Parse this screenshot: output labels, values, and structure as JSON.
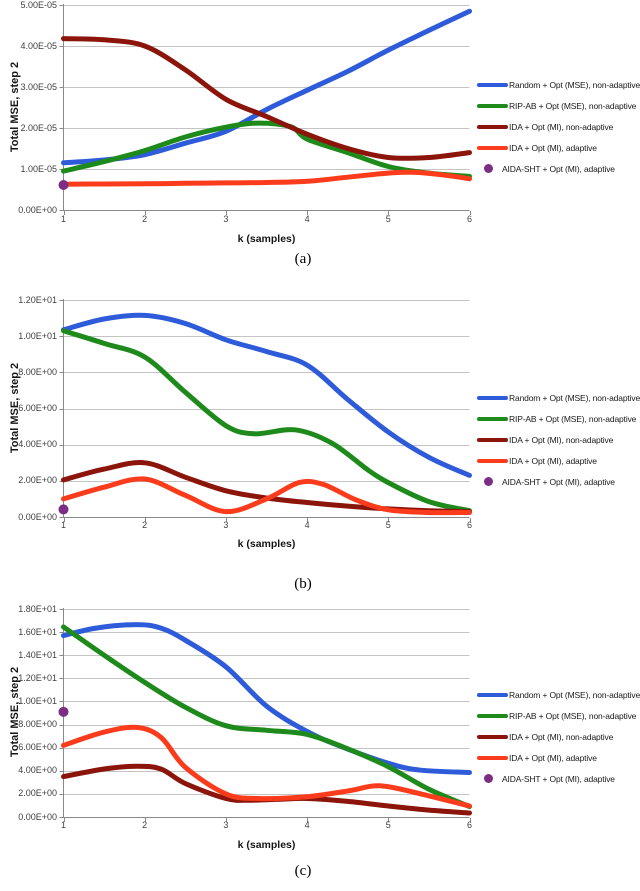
{
  "page": {
    "captions": [
      "(a)",
      "(b)",
      "(c)"
    ]
  },
  "colors": {
    "random_blue": "#2e5bda",
    "ripab_green": "#1e8a1c",
    "ida_nonadaptive_darkred": "#8b150a",
    "ida_adaptive_red": "#fb3c1c",
    "aida_purple": "#7c2d84",
    "gridline": "#c4c4c4",
    "axis": "#898989"
  },
  "chart_data": [
    {
      "type": "line",
      "title": "",
      "xlabel": "k (samples)",
      "ylabel": "Total MSE, step 2",
      "xlim": [
        1,
        6
      ],
      "x_ticks": [
        "1",
        "2",
        "3",
        "4",
        "5",
        "6"
      ],
      "ylim": [
        0,
        5e-05
      ],
      "y_ticks": [
        "0.00E+00",
        "1.00E-05",
        "2.00E-05",
        "3.00E-05",
        "4.00E-05",
        "5.00E-05"
      ],
      "grid": true,
      "legend_position": "right",
      "series": [
        {
          "id": "random",
          "name": "Random + Opt (MSE), non-adaptive",
          "marker": "line",
          "color": "#2e5bda",
          "points": [
            [
              1,
              1.15e-05
            ],
            [
              1.5,
              1.22e-05
            ],
            [
              2,
              1.35e-05
            ],
            [
              2.5,
              1.63e-05
            ],
            [
              3,
              1.92e-05
            ],
            [
              3.5,
              2.45e-05
            ],
            [
              4,
              2.92e-05
            ],
            [
              4.5,
              3.38e-05
            ],
            [
              5,
              3.9e-05
            ],
            [
              5.5,
              4.38e-05
            ],
            [
              6,
              4.85e-05
            ]
          ]
        },
        {
          "id": "rip-ab",
          "name": "RIP-AB + Opt (MSE), non-adaptive",
          "marker": "line",
          "color": "#1e8a1c",
          "points": [
            [
              1,
              9.5e-06
            ],
            [
              1.5,
              1.18e-05
            ],
            [
              2,
              1.45e-05
            ],
            [
              2.5,
              1.78e-05
            ],
            [
              3,
              2.02e-05
            ],
            [
              3.4,
              2.12e-05
            ],
            [
              3.8,
              2.03e-05
            ],
            [
              4,
              1.73e-05
            ],
            [
              4.5,
              1.4e-05
            ],
            [
              5,
              1.06e-05
            ],
            [
              5.5,
              9e-06
            ],
            [
              6,
              8.2e-06
            ]
          ]
        },
        {
          "id": "ida-na",
          "name": "IDA + Opt (MI), non-adaptive",
          "marker": "line",
          "color": "#8b150a",
          "points": [
            [
              1,
              4.18e-05
            ],
            [
              1.5,
              4.15e-05
            ],
            [
              2,
              4e-05
            ],
            [
              2.5,
              3.42e-05
            ],
            [
              3,
              2.7e-05
            ],
            [
              3.5,
              2.28e-05
            ],
            [
              4,
              1.85e-05
            ],
            [
              4.5,
              1.5e-05
            ],
            [
              5,
              1.28e-05
            ],
            [
              5.5,
              1.28e-05
            ],
            [
              6,
              1.4e-05
            ]
          ]
        },
        {
          "id": "ida-ad",
          "name": "IDA + Opt (MI), adaptive",
          "marker": "line",
          "color": "#fb3c1c",
          "points": [
            [
              1,
              6.3e-06
            ],
            [
              1.5,
              6.35e-06
            ],
            [
              2,
              6.4e-06
            ],
            [
              2.5,
              6.5e-06
            ],
            [
              3,
              6.6e-06
            ],
            [
              3.5,
              6.7e-06
            ],
            [
              4,
              7e-06
            ],
            [
              4.5,
              8e-06
            ],
            [
              5,
              9e-06
            ],
            [
              5.3,
              9.2e-06
            ],
            [
              5.7,
              8.5e-06
            ],
            [
              6,
              7.6e-06
            ]
          ]
        },
        {
          "id": "aida-dot",
          "name": "AIDA-SHT + Opt (MI), adaptive",
          "marker": "dot",
          "color": "#7c2d84",
          "points": [
            [
              1,
              6.1e-06
            ]
          ]
        }
      ]
    },
    {
      "type": "line",
      "title": "",
      "xlabel": "k (samples)",
      "ylabel": "Total MSE, step 2",
      "xlim": [
        1,
        6
      ],
      "x_ticks": [
        "1",
        "2",
        "3",
        "4",
        "5",
        "6"
      ],
      "ylim": [
        0,
        12
      ],
      "y_ticks": [
        "0.00E+00",
        "2.00E+00",
        "4.00E+00",
        "6.00E+00",
        "8.00E+00",
        "1.00E+01",
        "1.20E+01"
      ],
      "grid": true,
      "legend_position": "right",
      "series": [
        {
          "id": "random",
          "name": "Random + Opt (MSE), non-adaptive",
          "marker": "line",
          "color": "#2e5bda",
          "points": [
            [
              1,
              10.35
            ],
            [
              1.5,
              10.95
            ],
            [
              2,
              11.15
            ],
            [
              2.5,
              10.7
            ],
            [
              3,
              9.8
            ],
            [
              3.5,
              9.15
            ],
            [
              4,
              8.4
            ],
            [
              4.5,
              6.5
            ],
            [
              5,
              4.7
            ],
            [
              5.5,
              3.3
            ],
            [
              6,
              2.3
            ]
          ]
        },
        {
          "id": "rip-ab",
          "name": "RIP-AB + Opt (MSE), non-adaptive",
          "marker": "line",
          "color": "#1e8a1c",
          "points": [
            [
              1,
              10.3
            ],
            [
              1.5,
              9.6
            ],
            [
              2,
              8.85
            ],
            [
              2.5,
              6.9
            ],
            [
              3,
              5.05
            ],
            [
              3.35,
              4.6
            ],
            [
              3.85,
              4.82
            ],
            [
              4.3,
              4.1
            ],
            [
              4.75,
              2.6
            ],
            [
              5,
              1.9
            ],
            [
              5.5,
              0.85
            ],
            [
              6,
              0.35
            ]
          ]
        },
        {
          "id": "ida-na",
          "name": "IDA + Opt (MI), non-adaptive",
          "marker": "line",
          "color": "#8b150a",
          "points": [
            [
              1,
              2.05
            ],
            [
              1.5,
              2.65
            ],
            [
              2,
              3.0
            ],
            [
              2.5,
              2.2
            ],
            [
              3,
              1.45
            ],
            [
              3.5,
              1.05
            ],
            [
              4,
              0.8
            ],
            [
              4.5,
              0.6
            ],
            [
              5,
              0.45
            ],
            [
              5.5,
              0.35
            ],
            [
              6,
              0.3
            ]
          ]
        },
        {
          "id": "ida-ad",
          "name": "IDA + Opt (MI), adaptive",
          "marker": "line",
          "color": "#fb3c1c",
          "points": [
            [
              1,
              1.0
            ],
            [
              1.5,
              1.65
            ],
            [
              2,
              2.1
            ],
            [
              2.5,
              1.2
            ],
            [
              3,
              0.3
            ],
            [
              3.5,
              1.0
            ],
            [
              3.9,
              1.9
            ],
            [
              4.2,
              1.8
            ],
            [
              4.6,
              0.95
            ],
            [
              5,
              0.4
            ],
            [
              5.5,
              0.25
            ],
            [
              6,
              0.25
            ]
          ]
        },
        {
          "id": "aida-dot",
          "name": "AIDA-SHT + Opt (MI), adaptive",
          "marker": "dot",
          "color": "#7c2d84",
          "points": [
            [
              1,
              0.42
            ]
          ]
        }
      ]
    },
    {
      "type": "line",
      "title": "",
      "xlabel": "k (samples)",
      "ylabel": "Total MSE, step 2",
      "xlim": [
        1,
        6
      ],
      "x_ticks": [
        "1",
        "2",
        "3",
        "4",
        "5",
        "6"
      ],
      "ylim": [
        0,
        18
      ],
      "y_ticks": [
        "0.00E+00",
        "2.00E+00",
        "4.00E+00",
        "6.00E+00",
        "8.00E+00",
        "1.00E+01",
        "1.20E+01",
        "1.40E+01",
        "1.60E+01",
        "1.80E+01"
      ],
      "grid": true,
      "legend_position": "right",
      "series": [
        {
          "id": "random",
          "name": "Random + Opt (MSE), non-adaptive",
          "marker": "line",
          "color": "#2e5bda",
          "points": [
            [
              1,
              15.7
            ],
            [
              1.4,
              16.35
            ],
            [
              1.9,
              16.65
            ],
            [
              2.2,
              16.35
            ],
            [
              2.5,
              15.3
            ],
            [
              3,
              13.0
            ],
            [
              3.5,
              9.6
            ],
            [
              4,
              7.4
            ],
            [
              4.4,
              6.15
            ],
            [
              5,
              4.65
            ],
            [
              5.4,
              4.05
            ],
            [
              6,
              3.85
            ]
          ]
        },
        {
          "id": "rip-ab",
          "name": "RIP-AB + Opt (MSE), non-adaptive",
          "marker": "line",
          "color": "#1e8a1c",
          "points": [
            [
              1,
              16.45
            ],
            [
              1.5,
              14.0
            ],
            [
              2,
              11.65
            ],
            [
              2.5,
              9.5
            ],
            [
              3,
              7.9
            ],
            [
              3.5,
              7.5
            ],
            [
              4,
              7.15
            ],
            [
              4.5,
              5.9
            ],
            [
              5,
              4.35
            ],
            [
              5.5,
              2.4
            ],
            [
              6,
              0.9
            ]
          ]
        },
        {
          "id": "ida-na",
          "name": "IDA + Opt (MI), non-adaptive",
          "marker": "line",
          "color": "#8b150a",
          "points": [
            [
              1,
              3.5
            ],
            [
              1.5,
              4.15
            ],
            [
              1.9,
              4.4
            ],
            [
              2.2,
              4.15
            ],
            [
              2.5,
              2.9
            ],
            [
              3,
              1.6
            ],
            [
              3.3,
              1.45
            ],
            [
              3.7,
              1.55
            ],
            [
              4,
              1.6
            ],
            [
              4.5,
              1.35
            ],
            [
              5,
              0.95
            ],
            [
              5.5,
              0.6
            ],
            [
              6,
              0.35
            ]
          ]
        },
        {
          "id": "ida-ad",
          "name": "IDA + Opt (MI), adaptive",
          "marker": "line",
          "color": "#fb3c1c",
          "points": [
            [
              1,
              6.2
            ],
            [
              1.5,
              7.35
            ],
            [
              1.9,
              7.75
            ],
            [
              2.2,
              6.9
            ],
            [
              2.5,
              4.3
            ],
            [
              3,
              2.0
            ],
            [
              3.4,
              1.6
            ],
            [
              4,
              1.75
            ],
            [
              4.5,
              2.25
            ],
            [
              4.9,
              2.7
            ],
            [
              5.4,
              2.0
            ],
            [
              6,
              0.95
            ]
          ]
        },
        {
          "id": "aida-dot",
          "name": "AIDA-SHT + Opt (MI), adaptive",
          "marker": "dot",
          "color": "#7c2d84",
          "points": [
            [
              1,
              9.1
            ]
          ]
        }
      ]
    }
  ]
}
